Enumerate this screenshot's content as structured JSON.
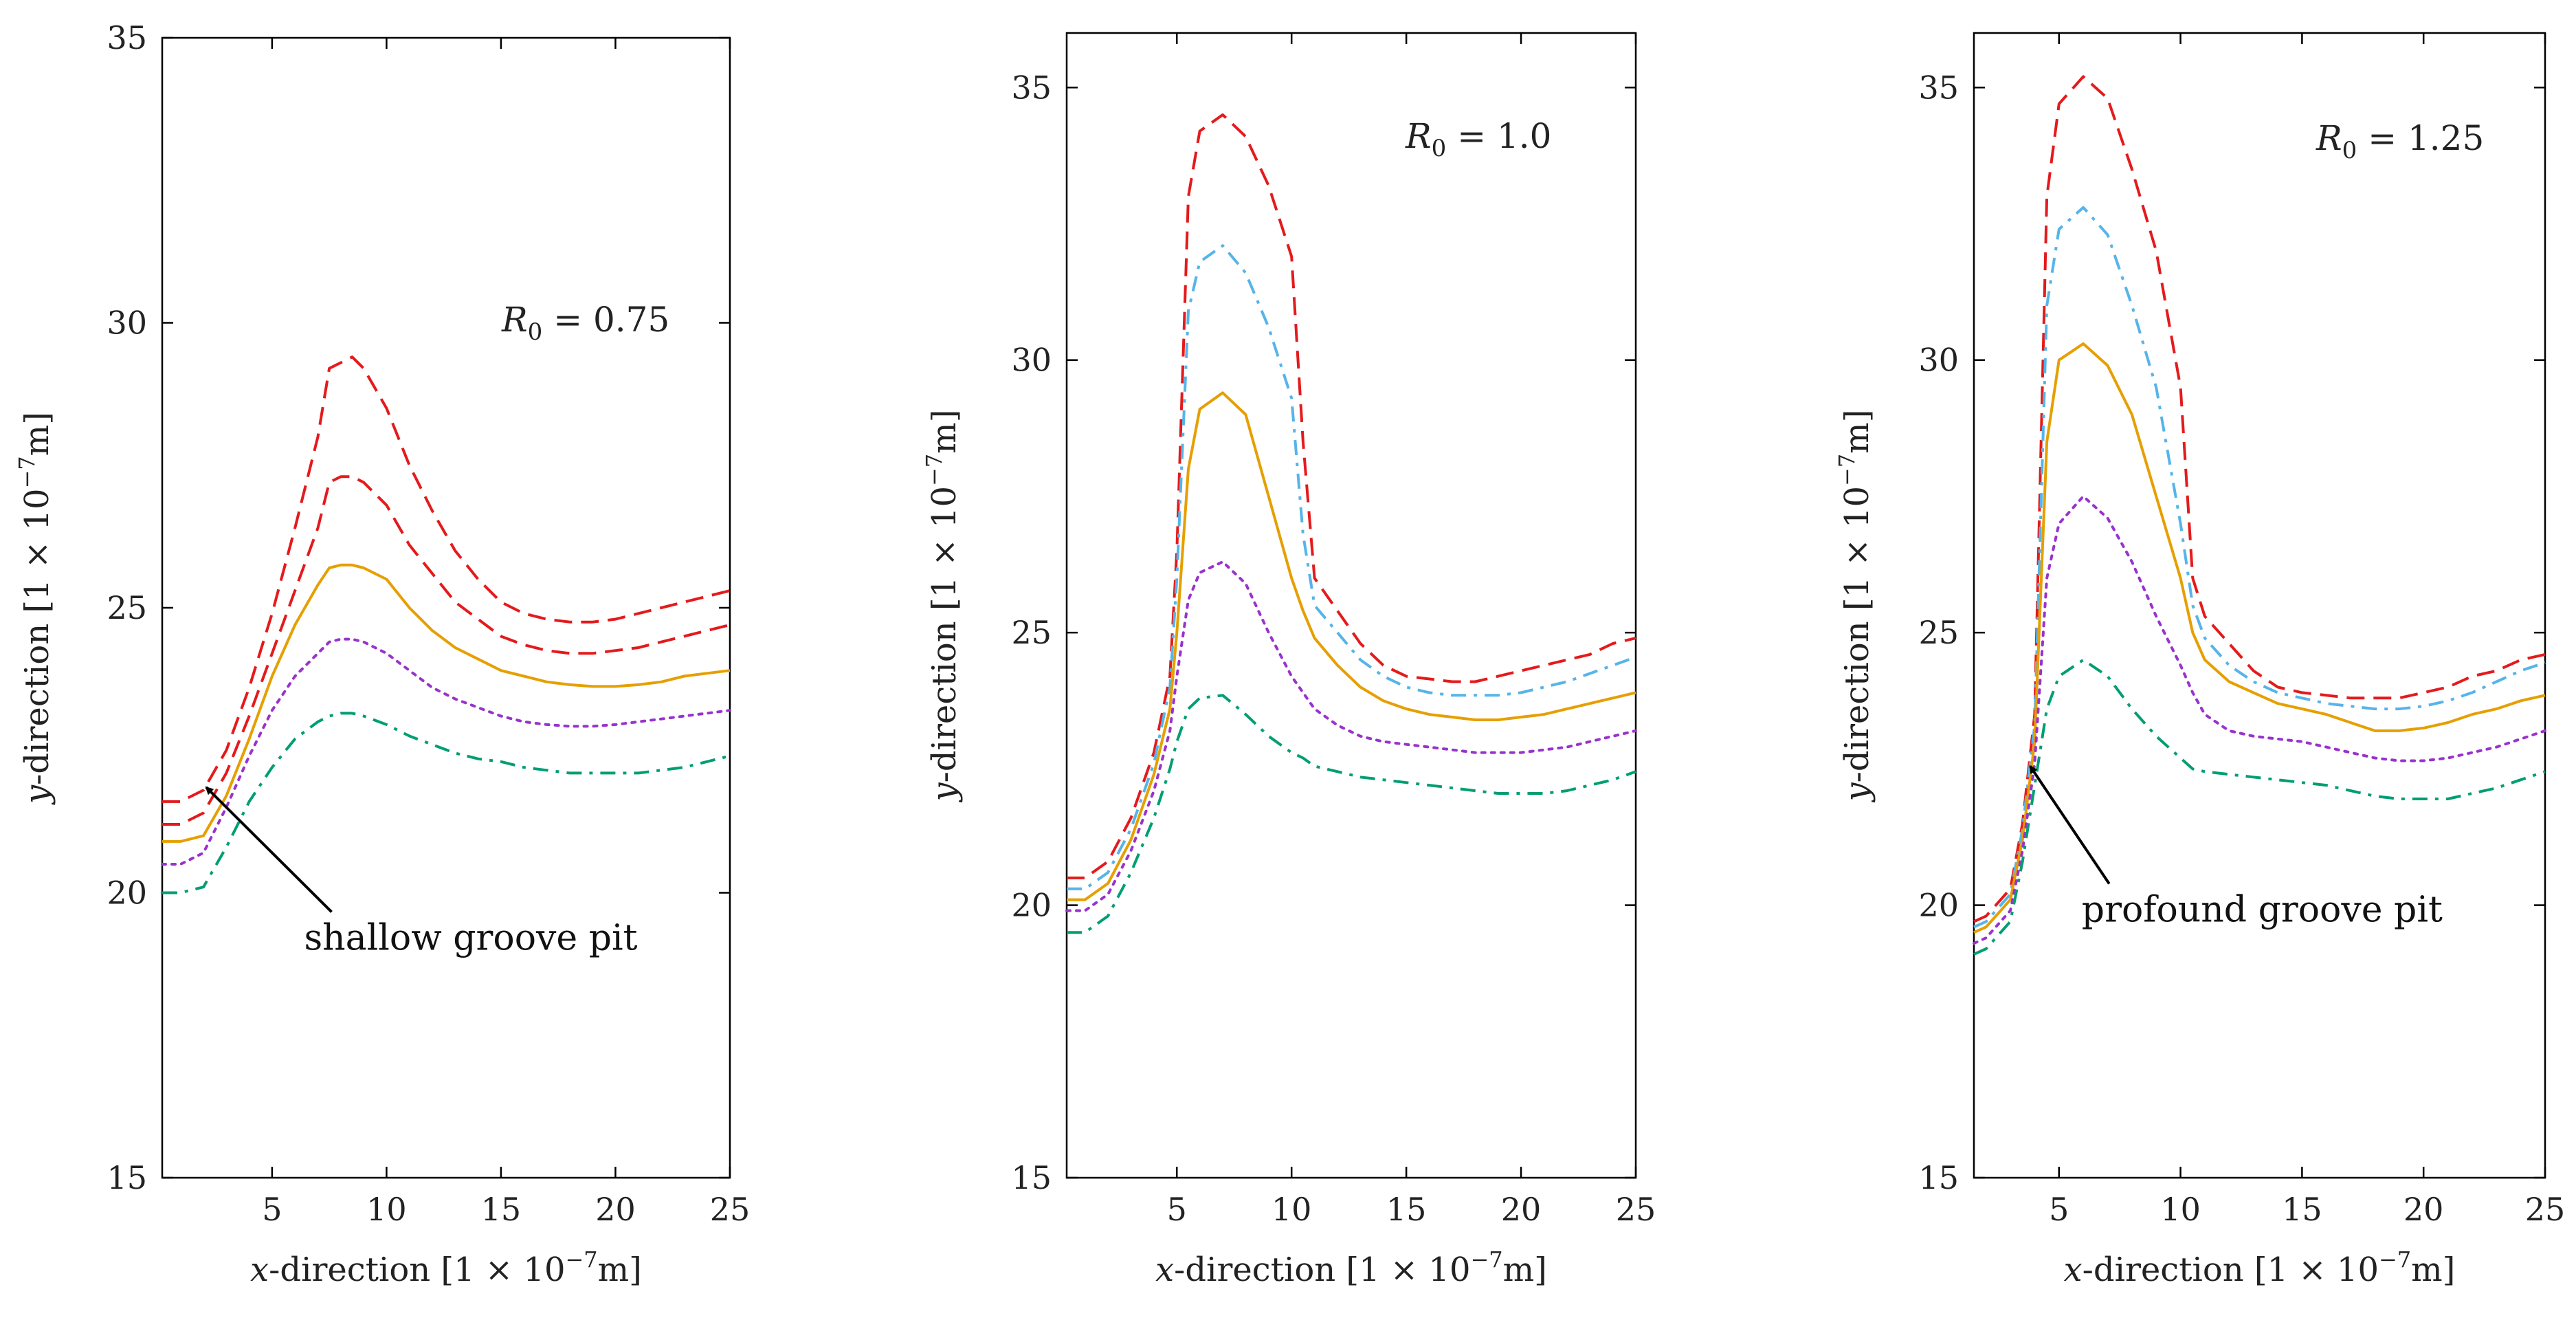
{
  "colors": {
    "red": "#e41a1c",
    "cyan": "#56b4e9",
    "orange": "#e69f00",
    "purple": "#9932cc",
    "green": "#009e73",
    "frame": "#000000"
  },
  "chart_data": [
    {
      "type": "line",
      "title": "R0 = 0.75",
      "r0_label": {
        "var": "R",
        "sub": "0",
        "value": " = 0.75"
      },
      "xlabel": {
        "var": "x",
        "rest": "-direction [1 × 10",
        "exp": "−7",
        "unit": "m]"
      },
      "ylabel": {
        "var": "y",
        "rest": "-direction [1 × 10",
        "exp": "−7",
        "unit": "m]"
      },
      "xlim": [
        0.2,
        25
      ],
      "ylim": [
        15,
        35
      ],
      "xticks": [
        "5",
        "10",
        "15",
        "20",
        "25"
      ],
      "yticks": [
        "15",
        "20",
        "25",
        "30",
        "35"
      ],
      "grid": false,
      "annotation": {
        "text": "shallow groove pit",
        "x": 2.0,
        "y": 21.9,
        "text_x": 7.0,
        "text_y": 19.0
      },
      "series": [
        {
          "name": "red-dashed-upper",
          "color": "red",
          "dash": "dashed",
          "x": [
            0.2,
            1,
            2,
            3,
            4,
            5,
            6,
            7,
            7.5,
            8,
            8.5,
            9,
            10,
            11,
            12,
            13,
            14,
            15,
            16,
            17,
            18,
            19,
            20,
            21,
            22,
            23,
            24,
            25
          ],
          "y": [
            21.6,
            21.6,
            21.8,
            22.5,
            23.6,
            24.9,
            26.4,
            28.0,
            29.2,
            29.3,
            29.4,
            29.2,
            28.5,
            27.5,
            26.7,
            26.0,
            25.5,
            25.1,
            24.9,
            24.8,
            24.75,
            24.75,
            24.8,
            24.9,
            25.0,
            25.1,
            25.2,
            25.3
          ]
        },
        {
          "name": "red-dashed-lower",
          "color": "red",
          "dash": "dashed",
          "x": [
            0.2,
            1,
            2,
            3,
            4,
            5,
            6,
            7,
            7.5,
            8,
            8.5,
            9,
            10,
            11,
            12,
            13,
            14,
            15,
            16,
            17,
            18,
            19,
            20,
            21,
            22,
            23,
            24,
            25
          ],
          "y": [
            21.2,
            21.2,
            21.4,
            22.1,
            23.1,
            24.2,
            25.3,
            26.4,
            27.2,
            27.3,
            27.3,
            27.2,
            26.8,
            26.1,
            25.6,
            25.1,
            24.8,
            24.5,
            24.35,
            24.25,
            24.2,
            24.2,
            24.25,
            24.3,
            24.4,
            24.5,
            24.6,
            24.7
          ]
        },
        {
          "name": "orange-solid",
          "color": "orange",
          "dash": "solid",
          "x": [
            0.2,
            1,
            2,
            3,
            4,
            5,
            6,
            7,
            7.5,
            8,
            8.5,
            9,
            10,
            11,
            12,
            13,
            14,
            15,
            16,
            17,
            18,
            19,
            20,
            21,
            22,
            23,
            24,
            25
          ],
          "y": [
            20.9,
            20.9,
            21.0,
            21.7,
            22.7,
            23.8,
            24.7,
            25.4,
            25.7,
            25.75,
            25.75,
            25.7,
            25.5,
            25.0,
            24.6,
            24.3,
            24.1,
            23.9,
            23.8,
            23.7,
            23.65,
            23.62,
            23.62,
            23.65,
            23.7,
            23.8,
            23.85,
            23.9
          ]
        },
        {
          "name": "purple-dotted",
          "color": "purple",
          "dash": "dotted",
          "x": [
            0.2,
            1,
            2,
            3,
            4,
            5,
            6,
            7,
            7.5,
            8,
            8.5,
            9,
            10,
            11,
            12,
            13,
            14,
            15,
            16,
            17,
            18,
            19,
            20,
            21,
            22,
            23,
            24,
            25
          ],
          "y": [
            20.5,
            20.5,
            20.7,
            21.5,
            22.4,
            23.2,
            23.8,
            24.2,
            24.4,
            24.45,
            24.45,
            24.4,
            24.2,
            23.9,
            23.6,
            23.4,
            23.25,
            23.1,
            23.0,
            22.95,
            22.92,
            22.92,
            22.95,
            23.0,
            23.05,
            23.1,
            23.15,
            23.2
          ]
        },
        {
          "name": "green-dashdot",
          "color": "green",
          "dash": "dashdot",
          "x": [
            0.2,
            1,
            2,
            3,
            4,
            5,
            6,
            7,
            7.5,
            8,
            8.5,
            9,
            10,
            11,
            12,
            13,
            14,
            15,
            16,
            17,
            18,
            19,
            20,
            21,
            22,
            23,
            24,
            25
          ],
          "y": [
            20.0,
            20.0,
            20.1,
            20.8,
            21.6,
            22.2,
            22.7,
            23.0,
            23.1,
            23.15,
            23.15,
            23.1,
            22.95,
            22.75,
            22.6,
            22.45,
            22.35,
            22.3,
            22.2,
            22.15,
            22.1,
            22.1,
            22.1,
            22.1,
            22.15,
            22.2,
            22.3,
            22.4
          ]
        }
      ]
    },
    {
      "type": "line",
      "title": "R0 = 1.0",
      "r0_label": {
        "var": "R",
        "sub": "0",
        "value": " = 1.0"
      },
      "xlabel": {
        "var": "x",
        "rest": "-direction [1 × 10",
        "exp": "−7",
        "unit": "m]"
      },
      "ylabel": {
        "var": "y",
        "rest": "-direction [1 × 10",
        "exp": "−7",
        "unit": "m]"
      },
      "xlim": [
        0.2,
        25
      ],
      "ylim": [
        15,
        36
      ],
      "xticks": [
        "5",
        "10",
        "15",
        "20",
        "25"
      ],
      "yticks": [
        "15",
        "20",
        "25",
        "30",
        "35"
      ],
      "grid": false,
      "series": [
        {
          "name": "red-dashed",
          "color": "red",
          "dash": "dashed",
          "x": [
            0.2,
            1,
            2,
            3,
            4,
            4.7,
            5,
            5.5,
            6,
            7,
            8,
            9,
            10,
            10.5,
            11,
            12,
            13,
            14,
            15,
            16,
            17,
            18,
            19,
            20,
            21,
            22,
            23,
            24,
            25
          ],
          "y": [
            20.5,
            20.5,
            20.8,
            21.6,
            22.8,
            24.2,
            26.5,
            33.0,
            34.2,
            34.5,
            34.1,
            33.2,
            31.9,
            28.5,
            26.0,
            25.4,
            24.8,
            24.4,
            24.2,
            24.15,
            24.1,
            24.1,
            24.2,
            24.3,
            24.4,
            24.5,
            24.6,
            24.8,
            24.9
          ]
        },
        {
          "name": "cyan-dashdot",
          "color": "cyan",
          "dash": "dashdot",
          "x": [
            0.2,
            1,
            2,
            3,
            4,
            4.7,
            5,
            5.5,
            6,
            7,
            8,
            9,
            10,
            10.5,
            11,
            12,
            13,
            14,
            15,
            16,
            17,
            18,
            19,
            20,
            21,
            22,
            23,
            24,
            25
          ],
          "y": [
            20.3,
            20.3,
            20.6,
            21.4,
            22.6,
            24.0,
            26.0,
            30.9,
            31.8,
            32.1,
            31.6,
            30.6,
            29.3,
            26.8,
            25.5,
            25.0,
            24.5,
            24.2,
            24.0,
            23.9,
            23.85,
            23.85,
            23.85,
            23.9,
            24.0,
            24.1,
            24.25,
            24.4,
            24.55
          ]
        },
        {
          "name": "orange-solid",
          "color": "orange",
          "dash": "solid",
          "x": [
            0.2,
            1,
            2,
            3,
            4,
            4.7,
            5,
            5.5,
            6,
            7,
            8,
            9,
            10,
            10.5,
            11,
            12,
            13,
            14,
            15,
            16,
            17,
            18,
            19,
            20,
            21,
            22,
            23,
            24,
            25
          ],
          "y": [
            20.1,
            20.1,
            20.4,
            21.2,
            22.4,
            23.6,
            25.0,
            28.0,
            29.1,
            29.4,
            29.0,
            27.5,
            26.0,
            25.4,
            24.9,
            24.4,
            24.0,
            23.75,
            23.6,
            23.5,
            23.45,
            23.4,
            23.4,
            23.45,
            23.5,
            23.6,
            23.7,
            23.8,
            23.9
          ]
        },
        {
          "name": "purple-dotted",
          "color": "purple",
          "dash": "dotted",
          "x": [
            0.2,
            1,
            2,
            3,
            4,
            4.7,
            5,
            5.5,
            6,
            7,
            8,
            9,
            10,
            10.5,
            11,
            12,
            13,
            14,
            15,
            16,
            17,
            18,
            19,
            20,
            21,
            22,
            23,
            24,
            25
          ],
          "y": [
            19.9,
            19.9,
            20.2,
            21.0,
            22.1,
            23.2,
            24.2,
            25.6,
            26.1,
            26.3,
            25.9,
            25.0,
            24.2,
            23.9,
            23.6,
            23.3,
            23.1,
            23.0,
            22.95,
            22.9,
            22.85,
            22.8,
            22.8,
            22.8,
            22.85,
            22.9,
            23.0,
            23.1,
            23.2
          ]
        },
        {
          "name": "green-dashdot",
          "color": "green",
          "dash": "dashdot",
          "x": [
            0.2,
            1,
            2,
            3,
            4,
            4.7,
            5,
            5.5,
            6,
            7,
            8,
            9,
            10,
            10.5,
            11,
            12,
            13,
            14,
            15,
            16,
            17,
            18,
            19,
            20,
            21,
            22,
            23,
            24,
            25
          ],
          "y": [
            19.5,
            19.5,
            19.8,
            20.6,
            21.6,
            22.5,
            23.0,
            23.6,
            23.8,
            23.85,
            23.5,
            23.1,
            22.8,
            22.7,
            22.55,
            22.45,
            22.35,
            22.3,
            22.25,
            22.2,
            22.15,
            22.1,
            22.05,
            22.05,
            22.05,
            22.1,
            22.2,
            22.3,
            22.45
          ]
        }
      ]
    },
    {
      "type": "line",
      "title": "R0 = 1.25",
      "r0_label": {
        "var": "R",
        "sub": "0",
        "value": " = 1.25"
      },
      "xlabel": {
        "var": "x",
        "rest": "-direction [1 × 10",
        "exp": "−7",
        "unit": "m]"
      },
      "ylabel": {
        "var": "y",
        "rest": "-direction [1 × 10",
        "exp": "−7",
        "unit": "m]"
      },
      "xlim": [
        1.5,
        25
      ],
      "ylim": [
        15,
        36
      ],
      "xticks": [
        "5",
        "10",
        "15",
        "20",
        "25"
      ],
      "yticks": [
        "15",
        "20",
        "25",
        "30",
        "35"
      ],
      "grid": false,
      "annotation": {
        "text": "profound groove pit",
        "x": 3.7,
        "y": 22.6,
        "text_x": 6.5,
        "text_y": 19.7
      },
      "series": [
        {
          "name": "red-dashed",
          "color": "red",
          "dash": "dashed",
          "x": [
            1.5,
            2,
            3,
            3.5,
            4,
            4.5,
            5,
            6,
            7,
            8,
            9,
            10,
            10.5,
            11,
            12,
            13,
            14,
            15,
            16,
            17,
            18,
            19,
            20,
            21,
            22,
            23,
            24,
            25
          ],
          "y": [
            19.7,
            19.8,
            20.3,
            21.5,
            23.5,
            33.0,
            34.7,
            35.2,
            34.8,
            33.5,
            32.0,
            29.5,
            26.0,
            25.3,
            24.8,
            24.3,
            24.0,
            23.9,
            23.85,
            23.8,
            23.8,
            23.8,
            23.9,
            24.0,
            24.2,
            24.3,
            24.5,
            24.6
          ]
        },
        {
          "name": "cyan-dashdot",
          "color": "cyan",
          "dash": "dashdot",
          "x": [
            1.5,
            2,
            3,
            3.5,
            4,
            4.5,
            5,
            6,
            7,
            8,
            9,
            10,
            10.5,
            11,
            12,
            13,
            14,
            15,
            16,
            17,
            18,
            19,
            20,
            21,
            22,
            23,
            24,
            25
          ],
          "y": [
            19.6,
            19.7,
            20.2,
            21.4,
            23.3,
            31.0,
            32.4,
            32.8,
            32.3,
            31.0,
            29.5,
            27.0,
            25.5,
            24.9,
            24.4,
            24.1,
            23.9,
            23.8,
            23.7,
            23.65,
            23.6,
            23.6,
            23.65,
            23.75,
            23.9,
            24.1,
            24.3,
            24.45
          ]
        },
        {
          "name": "orange-solid",
          "color": "orange",
          "dash": "solid",
          "x": [
            1.5,
            2,
            3,
            3.5,
            4,
            4.5,
            5,
            6,
            7,
            8,
            9,
            10,
            10.5,
            11,
            12,
            13,
            14,
            15,
            16,
            17,
            18,
            19,
            20,
            21,
            22,
            23,
            24,
            25
          ],
          "y": [
            19.5,
            19.6,
            20.1,
            21.2,
            23.0,
            28.5,
            30.0,
            30.3,
            29.9,
            29.0,
            27.5,
            26.0,
            25.0,
            24.5,
            24.1,
            23.9,
            23.7,
            23.6,
            23.5,
            23.35,
            23.2,
            23.2,
            23.25,
            23.35,
            23.5,
            23.6,
            23.75,
            23.85
          ]
        },
        {
          "name": "purple-dotted",
          "color": "purple",
          "dash": "dotted",
          "x": [
            1.5,
            2,
            3,
            3.5,
            4,
            4.5,
            5,
            6,
            7,
            8,
            9,
            10,
            10.5,
            11,
            12,
            13,
            14,
            15,
            16,
            17,
            18,
            19,
            20,
            21,
            22,
            23,
            24,
            25
          ],
          "y": [
            19.3,
            19.4,
            19.9,
            21.0,
            22.6,
            26.0,
            27.0,
            27.5,
            27.1,
            26.3,
            25.3,
            24.4,
            23.9,
            23.5,
            23.2,
            23.1,
            23.05,
            23.0,
            22.9,
            22.8,
            22.7,
            22.65,
            22.65,
            22.7,
            22.8,
            22.9,
            23.05,
            23.2
          ]
        },
        {
          "name": "green-dashdot",
          "color": "green",
          "dash": "dashdot",
          "x": [
            1.5,
            2,
            3,
            3.5,
            4,
            4.5,
            5,
            6,
            7,
            8,
            9,
            10,
            10.5,
            11,
            12,
            13,
            14,
            15,
            16,
            17,
            18,
            19,
            20,
            21,
            22,
            23,
            24,
            25
          ],
          "y": [
            19.1,
            19.2,
            19.7,
            20.8,
            22.2,
            23.6,
            24.2,
            24.5,
            24.2,
            23.6,
            23.1,
            22.7,
            22.5,
            22.45,
            22.4,
            22.35,
            22.3,
            22.25,
            22.2,
            22.1,
            22.0,
            21.95,
            21.95,
            21.95,
            22.05,
            22.15,
            22.3,
            22.45
          ]
        }
      ]
    }
  ]
}
